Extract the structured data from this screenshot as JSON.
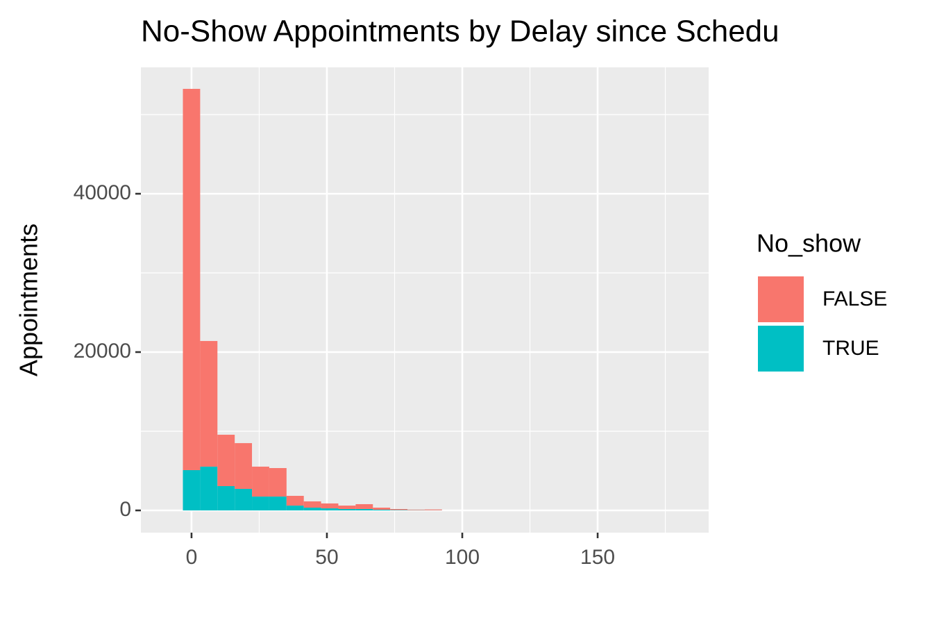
{
  "chart_data": {
    "type": "histogram",
    "title": "No-Show Appointments by Delay since Schedu",
    "y_label": "Appointments",
    "legend_title": "No_show",
    "legend_position": "right",
    "stacked": true,
    "grid": true,
    "bins": [
      -3.19,
      3.19,
      9.57,
      15.95,
      22.33,
      28.71,
      35.09,
      41.47,
      47.85,
      54.23,
      60.61,
      66.99,
      73.37,
      79.75,
      86.13,
      92.51
    ],
    "series": [
      {
        "name": "FALSE",
        "color": "#F8766D",
        "values": [
          48160,
          15870,
          6490,
          5780,
          3780,
          3600,
          1230,
          790,
          620,
          435,
          615,
          260,
          125,
          70,
          100
        ]
      },
      {
        "name": "TRUE",
        "color": "#00BFC4",
        "values": [
          5090,
          5530,
          3070,
          2720,
          1750,
          1750,
          610,
          350,
          260,
          175,
          175,
          90,
          50,
          30,
          20
        ]
      }
    ],
    "xlim": [
      -18.7,
      191
    ],
    "xticks": [
      0,
      50,
      100,
      150
    ],
    "xminor": [
      25,
      75,
      125,
      175
    ],
    "ylim": [
      -2807,
      55965
    ],
    "yticks": [
      0,
      20000,
      40000
    ],
    "yminor": [
      10000,
      30000,
      50000
    ]
  }
}
